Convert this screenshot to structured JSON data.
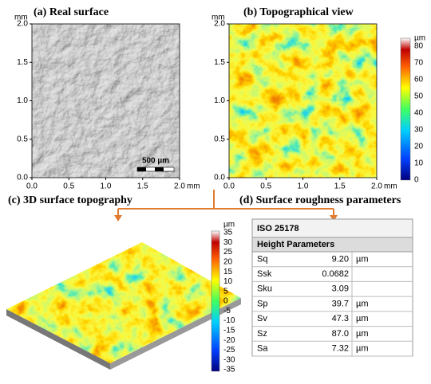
{
  "panels": [
    {
      "title": "(a) Real surface",
      "axis_unit": "mm",
      "x_ticks": [
        "0.0",
        "0.5",
        "1.0",
        "1.5",
        "2.0"
      ],
      "y_ticks": [
        "0.0",
        "0.5",
        "1.0",
        "1.5",
        "2.0"
      ],
      "scale_bar": "500 µm"
    },
    {
      "title": "(b) Topographical view",
      "axis_unit": "mm",
      "x_ticks": [
        "0.0",
        "0.5",
        "1.0",
        "1.5",
        "2.0"
      ],
      "y_ticks": [
        "0.0",
        "0.5",
        "1.0",
        "1.5",
        "2.0"
      ],
      "colorbar_unit": "µm",
      "colorbar_ticks": [
        "0",
        "10",
        "20",
        "30",
        "40",
        "50",
        "60",
        "70",
        "80"
      ]
    },
    {
      "title": "(c) 3D surface topography",
      "colorbar_unit": "µm",
      "colorbar_ticks": [
        "35",
        "30",
        "25",
        "20",
        "15",
        "10",
        "5",
        "0",
        "-5",
        "-10",
        "-15",
        "-20",
        "-25",
        "-30",
        "-35"
      ]
    },
    {
      "title": "(d) Surface roughness parameters",
      "table": {
        "title": "ISO 25178",
        "section": "Height Parameters",
        "rows": [
          {
            "name": "Sq",
            "value": "9.20",
            "unit": "µm"
          },
          {
            "name": "Ssk",
            "value": "0.0682"
          },
          {
            "name": "Sku",
            "value": "3.09"
          },
          {
            "name": "Sp",
            "value": "39.7",
            "unit": "µm"
          },
          {
            "name": "Sv",
            "value": "47.3",
            "unit": "µm"
          },
          {
            "name": "Sz",
            "value": "87.0",
            "unit": "µm"
          },
          {
            "name": "Sa",
            "value": "7.32",
            "unit": "µm"
          }
        ]
      }
    }
  ]
}
